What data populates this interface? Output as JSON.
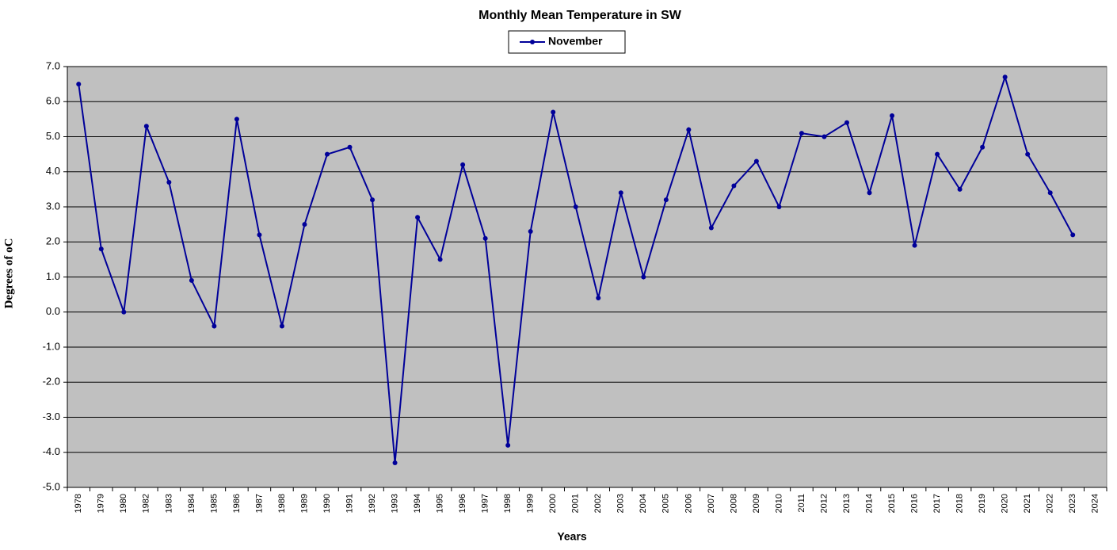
{
  "chart_data": {
    "type": "line",
    "title": "Monthly Mean Temperature in SW",
    "x_label": "Years",
    "y_label": "Degrees of  oC",
    "categories": [
      "1978",
      "1979",
      "1980",
      "1982",
      "1983",
      "1984",
      "1985",
      "1986",
      "1987",
      "1988",
      "1989",
      "1990",
      "1991",
      "1992",
      "1993",
      "1994",
      "1995",
      "1996",
      "1997",
      "1998",
      "1999",
      "2000",
      "2001",
      "2002",
      "2003",
      "2004",
      "2005",
      "2006",
      "2007",
      "2008",
      "2009",
      "2010",
      "2011",
      "2012",
      "2013",
      "2014",
      "2015",
      "2016",
      "2017",
      "2018",
      "2019",
      "2020",
      "2021",
      "2022",
      "2023",
      "2024"
    ],
    "series": [
      {
        "name": "November",
        "color": "#000099",
        "values": [
          6.5,
          1.8,
          0.0,
          5.3,
          3.7,
          0.9,
          -0.4,
          5.5,
          2.2,
          -0.4,
          2.5,
          4.5,
          4.7,
          3.2,
          -4.3,
          2.7,
          1.5,
          4.2,
          2.1,
          -3.8,
          2.3,
          5.7,
          3.0,
          0.4,
          3.4,
          1.0,
          3.2,
          5.2,
          2.4,
          3.6,
          4.3,
          3.0,
          5.1,
          5.0,
          5.4,
          3.4,
          5.6,
          1.9,
          4.5,
          3.5,
          4.7,
          6.7,
          4.5,
          3.4,
          2.2,
          null
        ]
      }
    ],
    "ylim": [
      -5,
      7
    ],
    "yticks": [
      {
        "value": -5,
        "label": "-5.0"
      },
      {
        "value": -4,
        "label": "-4.0"
      },
      {
        "value": -3,
        "label": "-3.0"
      },
      {
        "value": -2,
        "label": "-2.0"
      },
      {
        "value": -1,
        "label": "-1.0"
      },
      {
        "value": 0,
        "label": "0.0"
      },
      {
        "value": 1,
        "label": "1.0"
      },
      {
        "value": 2,
        "label": "2.0"
      },
      {
        "value": 3,
        "label": "3.0"
      },
      {
        "value": 4,
        "label": "4.0"
      },
      {
        "value": 5,
        "label": "5.0"
      },
      {
        "value": 6,
        "label": "6.0"
      },
      {
        "value": 7,
        "label": "7.0"
      }
    ],
    "grid": true,
    "legend": "top"
  }
}
